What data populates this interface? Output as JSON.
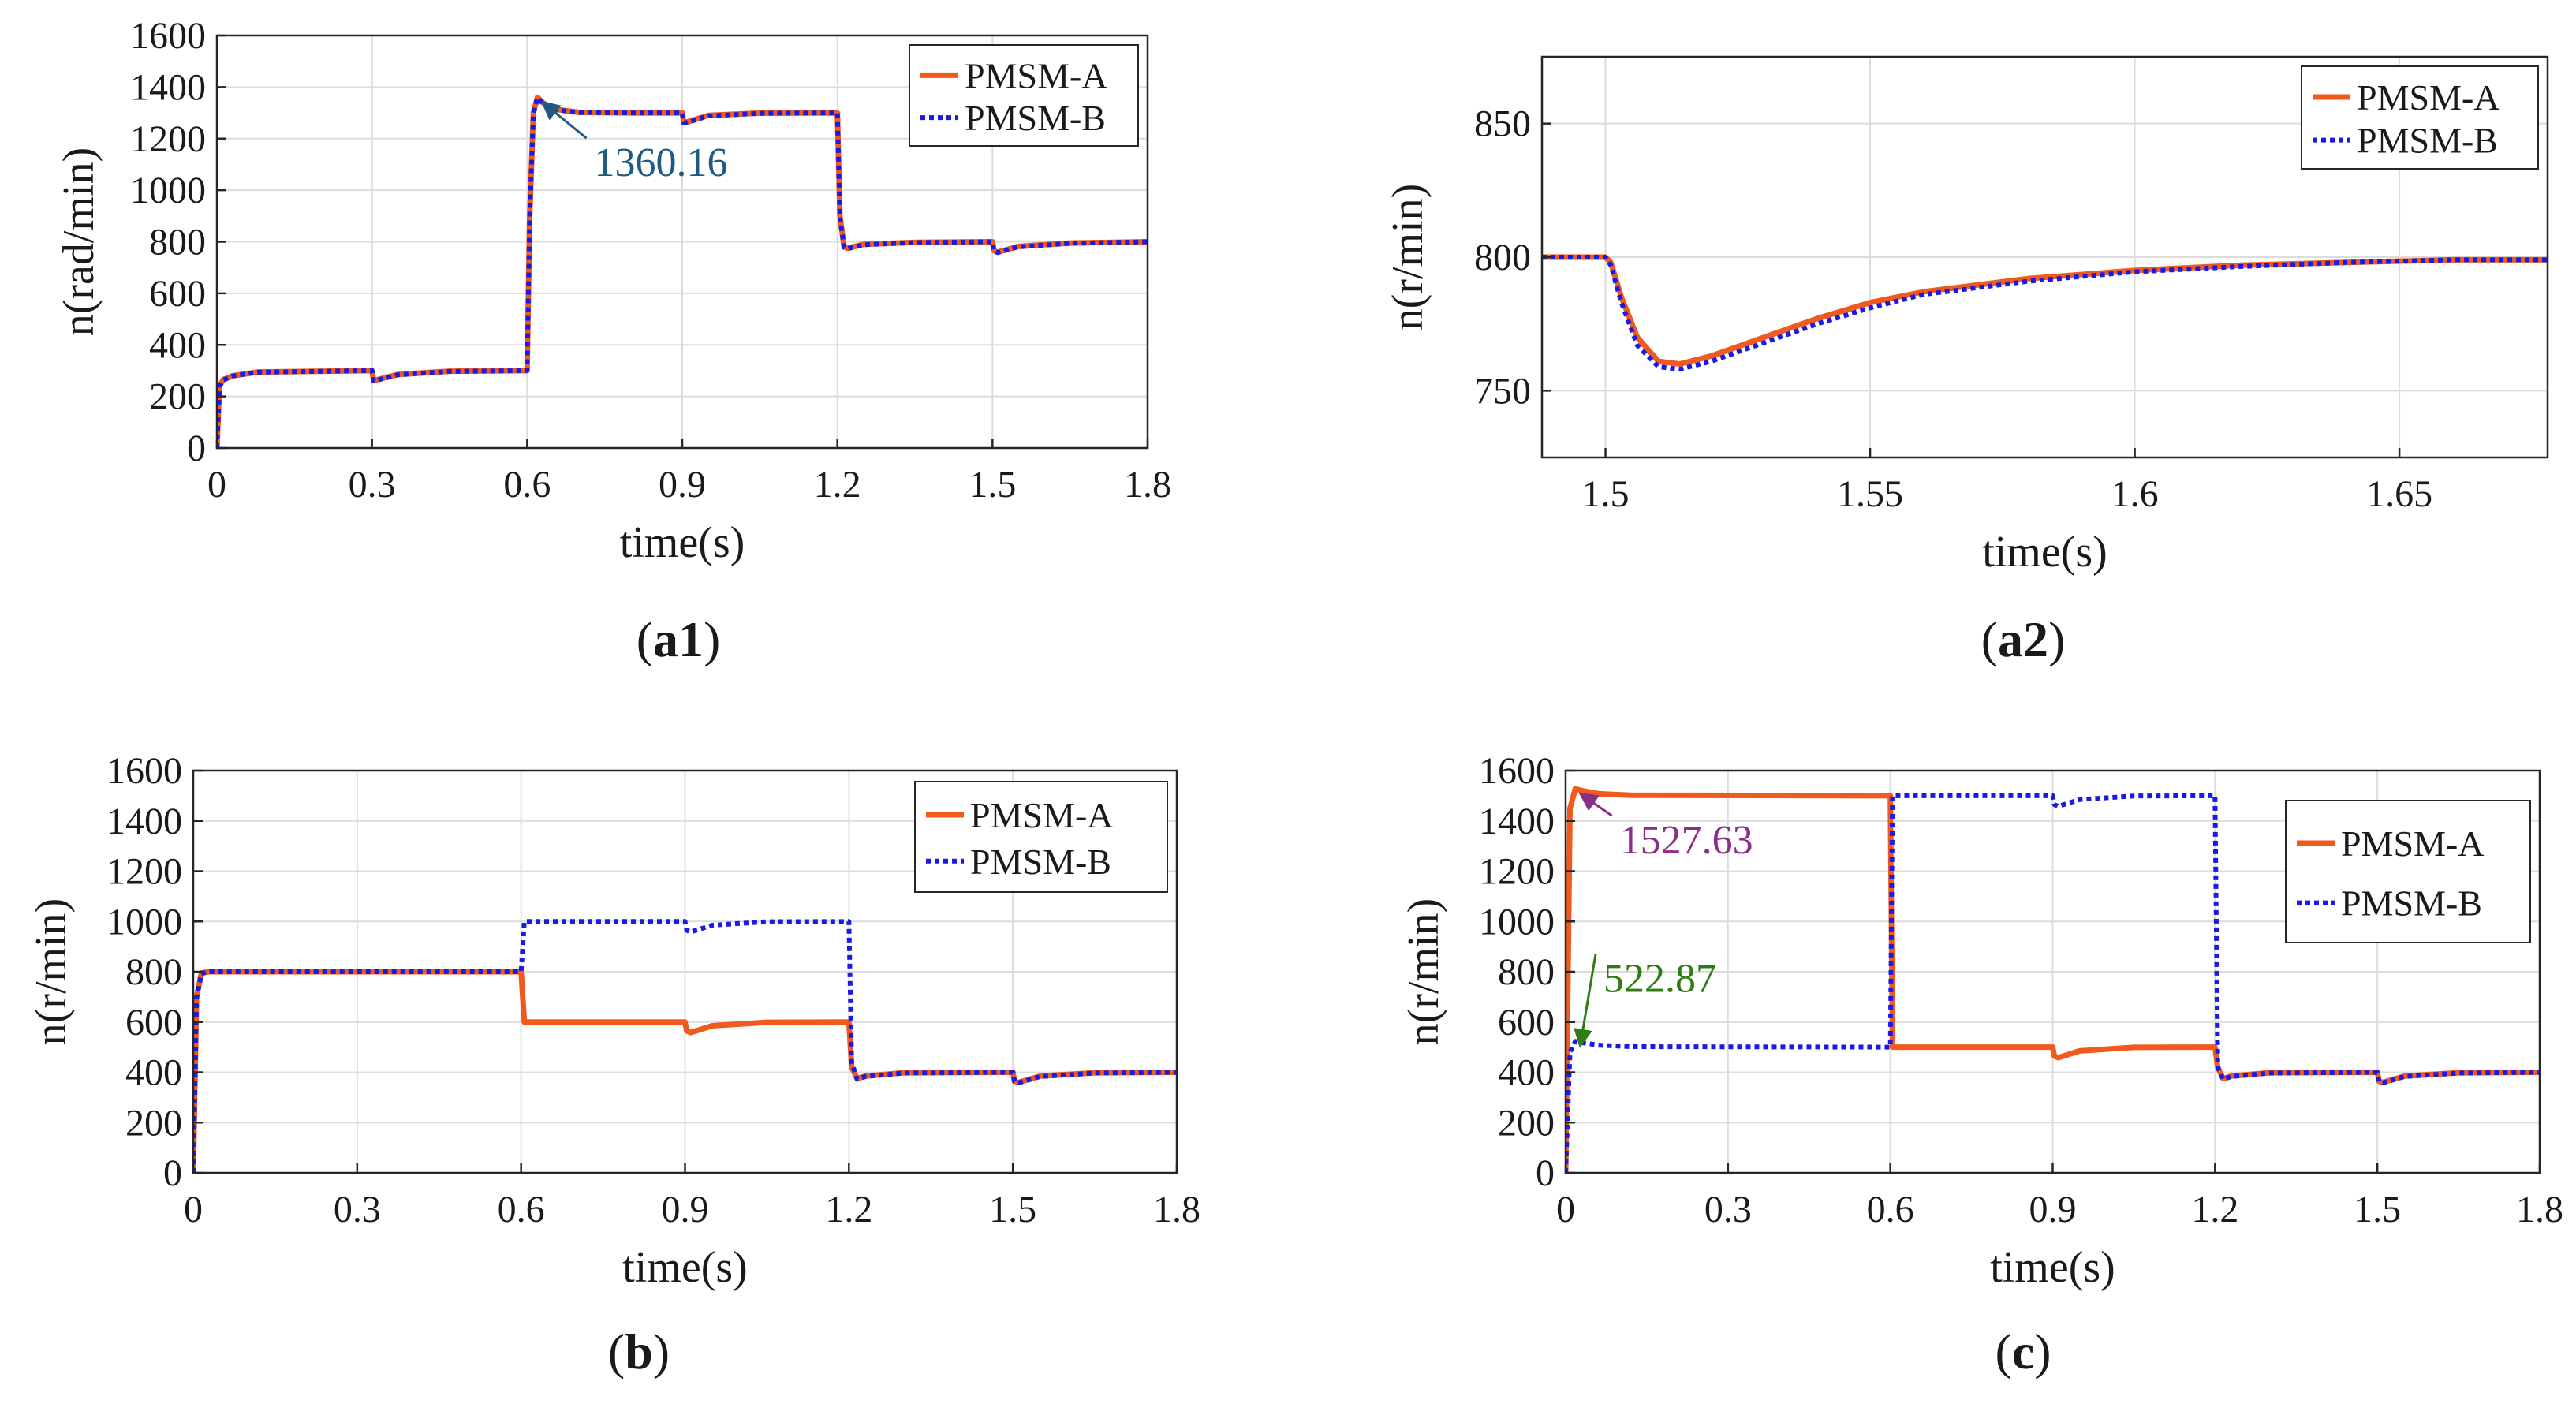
{
  "colors": {
    "series_a": "#f05a1e",
    "series_b": "#1a1ae6",
    "grid": "#dcdcdc",
    "axis": "#262626"
  },
  "chart_data": [
    {
      "id": "a1",
      "type": "line",
      "caption_open": "(",
      "caption_label": "a1",
      "caption_close": ")",
      "xlabel": "time(s)",
      "ylabel": "n(rad/min)",
      "xlim": [
        0,
        1.8
      ],
      "ylim": [
        0,
        1600
      ],
      "xticks": [
        0,
        0.3,
        0.6,
        0.9,
        1.2,
        1.5,
        1.8
      ],
      "xtick_labels": [
        "0",
        "0.3",
        "0.6",
        "0.9",
        "1.2",
        "1.5",
        "1.8"
      ],
      "yticks": [
        0,
        200,
        400,
        600,
        800,
        1000,
        1200,
        1400,
        1600
      ],
      "ytick_labels": [
        "0",
        "200",
        "400",
        "600",
        "800",
        "1000",
        "1200",
        "1400",
        "1600"
      ],
      "legend": [
        "PMSM-A",
        "PMSM-B"
      ],
      "legend_position": "top-right",
      "series": [
        {
          "name": "PMSM-A",
          "style": "solid",
          "x": [
            0,
            0.005,
            0.012,
            0.03,
            0.08,
            0.3,
            0.303,
            0.31,
            0.35,
            0.45,
            0.6,
            0.605,
            0.612,
            0.62,
            0.63,
            0.65,
            0.7,
            0.8,
            0.9,
            0.903,
            0.91,
            0.95,
            1.05,
            1.2,
            1.205,
            1.213,
            1.22,
            1.25,
            1.35,
            1.5,
            1.503,
            1.51,
            1.55,
            1.65,
            1.8
          ],
          "y": [
            0,
            240,
            265,
            280,
            295,
            300,
            262,
            265,
            285,
            298,
            300,
            900,
            1300,
            1360.16,
            1340,
            1315,
            1302,
            1300,
            1300,
            1262,
            1265,
            1290,
            1299,
            1300,
            900,
            780,
            775,
            790,
            798,
            800,
            765,
            760,
            782,
            795,
            800
          ]
        },
        {
          "name": "PMSM-B",
          "style": "dotted",
          "x": [
            0,
            0.005,
            0.012,
            0.03,
            0.08,
            0.3,
            0.303,
            0.31,
            0.35,
            0.45,
            0.6,
            0.605,
            0.612,
            0.62,
            0.63,
            0.65,
            0.7,
            0.8,
            0.9,
            0.903,
            0.91,
            0.95,
            1.05,
            1.2,
            1.205,
            1.213,
            1.22,
            1.25,
            1.35,
            1.5,
            1.503,
            1.51,
            1.55,
            1.65,
            1.8
          ],
          "y": [
            0,
            238,
            263,
            279,
            294,
            300,
            260,
            263,
            284,
            297,
            300,
            895,
            1295,
            1358,
            1338,
            1313,
            1301,
            1300,
            1300,
            1260,
            1263,
            1288,
            1298,
            1300,
            895,
            778,
            773,
            788,
            797,
            800,
            763,
            758,
            780,
            794,
            800
          ]
        }
      ],
      "annotations": [
        {
          "text": "1360.16",
          "at": [
            0.62,
            1360.16
          ],
          "text_at": [
            0.73,
            1055
          ],
          "color": "#1e5a82"
        }
      ]
    },
    {
      "id": "a2",
      "type": "line",
      "caption_open": "(",
      "caption_label": "a2",
      "caption_close": ")",
      "xlabel": "time(s)",
      "ylabel": "n(r/min)",
      "xlim": [
        1.488,
        1.678
      ],
      "ylim": [
        725,
        875
      ],
      "xticks": [
        1.5,
        1.55,
        1.6,
        1.65
      ],
      "xtick_labels": [
        "1.5",
        "1.55",
        "1.6",
        "1.65"
      ],
      "yticks": [
        750,
        800,
        850
      ],
      "ytick_labels": [
        "750",
        "800",
        "850"
      ],
      "legend": [
        "PMSM-A",
        "PMSM-B"
      ],
      "legend_position": "top-right",
      "series": [
        {
          "name": "PMSM-A",
          "style": "solid",
          "x": [
            1.488,
            1.5,
            1.501,
            1.503,
            1.506,
            1.51,
            1.514,
            1.52,
            1.53,
            1.54,
            1.55,
            1.56,
            1.58,
            1.6,
            1.62,
            1.64,
            1.66,
            1.678
          ],
          "y": [
            800,
            800,
            798,
            785,
            770,
            761,
            760,
            763,
            770,
            777,
            783,
            787,
            792,
            795,
            797,
            798,
            799,
            799
          ]
        },
        {
          "name": "PMSM-B",
          "style": "dotted",
          "x": [
            1.488,
            1.5,
            1.501,
            1.503,
            1.506,
            1.51,
            1.514,
            1.52,
            1.53,
            1.54,
            1.55,
            1.56,
            1.58,
            1.6,
            1.62,
            1.64,
            1.66,
            1.678
          ],
          "y": [
            800,
            800,
            797,
            783,
            767,
            759,
            758,
            761,
            768,
            775,
            781,
            786,
            791,
            794.5,
            796.5,
            798,
            799,
            799
          ]
        }
      ],
      "annotations": []
    },
    {
      "id": "b",
      "type": "line",
      "caption_open": "(",
      "caption_label": "b",
      "caption_close": ")",
      "xlabel": "time(s)",
      "ylabel": "n(r/min)",
      "xlim": [
        0,
        1.8
      ],
      "ylim": [
        0,
        1600
      ],
      "xticks": [
        0,
        0.3,
        0.6,
        0.9,
        1.2,
        1.5,
        1.8
      ],
      "xtick_labels": [
        "0",
        "0.3",
        "0.6",
        "0.9",
        "1.2",
        "1.5",
        "1.8"
      ],
      "yticks": [
        0,
        200,
        400,
        600,
        800,
        1000,
        1200,
        1400,
        1600
      ],
      "ytick_labels": [
        "0",
        "200",
        "400",
        "600",
        "800",
        "1000",
        "1200",
        "1400",
        "1600"
      ],
      "legend": [
        "PMSM-A",
        "PMSM-B"
      ],
      "legend_position": "top-right",
      "series": [
        {
          "name": "PMSM-A",
          "style": "solid",
          "x": [
            0,
            0.006,
            0.015,
            0.03,
            0.6,
            0.606,
            0.62,
            0.9,
            0.903,
            0.91,
            0.95,
            1.05,
            1.2,
            1.205,
            1.215,
            1.23,
            1.3,
            1.5,
            1.503,
            1.51,
            1.55,
            1.65,
            1.8
          ],
          "y": [
            0,
            700,
            795,
            800,
            800,
            600,
            600,
            600,
            565,
            558,
            585,
            599,
            600,
            420,
            375,
            385,
            398,
            400,
            365,
            360,
            385,
            398,
            400
          ]
        },
        {
          "name": "PMSM-B",
          "style": "dotted",
          "x": [
            0,
            0.006,
            0.015,
            0.03,
            0.6,
            0.606,
            0.62,
            0.9,
            0.903,
            0.91,
            0.95,
            1.05,
            1.2,
            1.205,
            1.215,
            1.23,
            1.3,
            1.5,
            1.503,
            1.51,
            1.55,
            1.65,
            1.8
          ],
          "y": [
            0,
            695,
            793,
            800,
            800,
            1000,
            1000,
            1000,
            965,
            958,
            985,
            999,
            1000,
            440,
            372,
            383,
            397,
            400,
            363,
            358,
            383,
            397,
            400
          ]
        }
      ],
      "annotations": []
    },
    {
      "id": "c",
      "type": "line",
      "caption_open": "(",
      "caption_label": "c",
      "caption_close": ")",
      "xlabel": "time(s)",
      "ylabel": "n(r/min)",
      "xlim": [
        0,
        1.8
      ],
      "ylim": [
        0,
        1600
      ],
      "xticks": [
        0,
        0.3,
        0.6,
        0.9,
        1.2,
        1.5,
        1.8
      ],
      "xtick_labels": [
        "0",
        "0.3",
        "0.6",
        "0.9",
        "1.2",
        "1.5",
        "1.8"
      ],
      "yticks": [
        0,
        200,
        400,
        600,
        800,
        1000,
        1200,
        1400,
        1600
      ],
      "ytick_labels": [
        "0",
        "200",
        "400",
        "600",
        "800",
        "1000",
        "1200",
        "1400",
        "1600"
      ],
      "legend": [
        "PMSM-A",
        "PMSM-B"
      ],
      "legend_position": "top-right",
      "series": [
        {
          "name": "PMSM-A",
          "style": "solid",
          "x": [
            0,
            0.008,
            0.018,
            0.03,
            0.06,
            0.12,
            0.6,
            0.604,
            0.62,
            0.9,
            0.903,
            0.91,
            0.95,
            1.05,
            1.2,
            1.205,
            1.215,
            1.23,
            1.3,
            1.5,
            1.503,
            1.51,
            1.55,
            1.65,
            1.8
          ],
          "y": [
            0,
            1450,
            1527.63,
            1520,
            1508,
            1502,
            1500,
            500,
            500,
            500,
            465,
            458,
            485,
            499,
            500,
            420,
            375,
            385,
            398,
            400,
            365,
            360,
            385,
            398,
            400
          ]
        },
        {
          "name": "PMSM-B",
          "style": "dotted",
          "x": [
            0,
            0.008,
            0.018,
            0.03,
            0.06,
            0.12,
            0.6,
            0.604,
            0.62,
            0.9,
            0.903,
            0.91,
            0.95,
            1.05,
            1.2,
            1.205,
            1.215,
            1.23,
            1.3,
            1.5,
            1.503,
            1.51,
            1.55,
            1.65,
            1.8
          ],
          "y": [
            0,
            480,
            522.87,
            518,
            508,
            502,
            500,
            1500,
            1500,
            1500,
            1465,
            1458,
            1485,
            1499,
            1500,
            420,
            372,
            383,
            397,
            400,
            363,
            358,
            383,
            397,
            400
          ]
        }
      ],
      "annotations": [
        {
          "text": "1527.63",
          "at": [
            0.018,
            1527.63
          ],
          "text_at": [
            0.1,
            1270
          ],
          "color": "#8a2e8a"
        },
        {
          "text": "522.87",
          "at": [
            0.018,
            522.87
          ],
          "text_at": [
            0.07,
            720
          ],
          "color": "#2e7d12"
        }
      ]
    }
  ]
}
